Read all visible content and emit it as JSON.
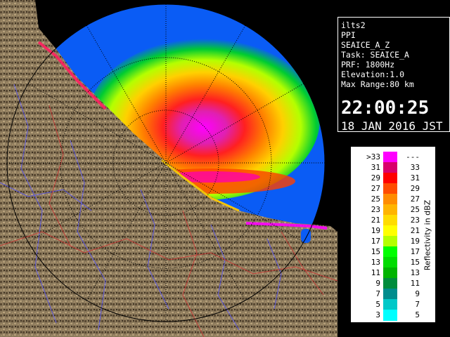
{
  "info": {
    "lines": [
      "ilts2",
      "PPI",
      "SEAICE_A_Z",
      "Task: SEAICE_A",
      "PRF: 1800Hz",
      "Elevation:1.0",
      "Max Range:80 km"
    ],
    "time": "22:00:25",
    "date": "18 JAN 2016 JST"
  },
  "legend": {
    "unit_label": "Reflectivity in dBZ",
    "rows": [
      {
        "lo": ">33",
        "hi": "---",
        "color": "#ff00ff"
      },
      {
        "lo": "31",
        "hi": "33",
        "color": "#d8006c"
      },
      {
        "lo": "29",
        "hi": "31",
        "color": "#ff0000"
      },
      {
        "lo": "27",
        "hi": "29",
        "color": "#ff4c00"
      },
      {
        "lo": "25",
        "hi": "27",
        "color": "#ff8c00"
      },
      {
        "lo": "23",
        "hi": "25",
        "color": "#ffb400"
      },
      {
        "lo": "21",
        "hi": "23",
        "color": "#ffdc00"
      },
      {
        "lo": "19",
        "hi": "21",
        "color": "#ffff00"
      },
      {
        "lo": "17",
        "hi": "19",
        "color": "#b4ff00"
      },
      {
        "lo": "15",
        "hi": "17",
        "color": "#00ff00"
      },
      {
        "lo": "13",
        "hi": "15",
        "color": "#00dc00"
      },
      {
        "lo": "11",
        "hi": "13",
        "color": "#00b400"
      },
      {
        "lo": "9",
        "hi": "11",
        "color": "#008c3c"
      },
      {
        "lo": "7",
        "hi": "9",
        "color": "#008c8c"
      },
      {
        "lo": "5",
        "hi": "7",
        "color": "#00c8c8"
      },
      {
        "lo": "3",
        "hi": "5",
        "color": "#00ffff"
      }
    ]
  },
  "map": {
    "land_color": "#8c7a5c",
    "sea_color": "#0a5cf5",
    "range_ring_color": "#000000"
  }
}
